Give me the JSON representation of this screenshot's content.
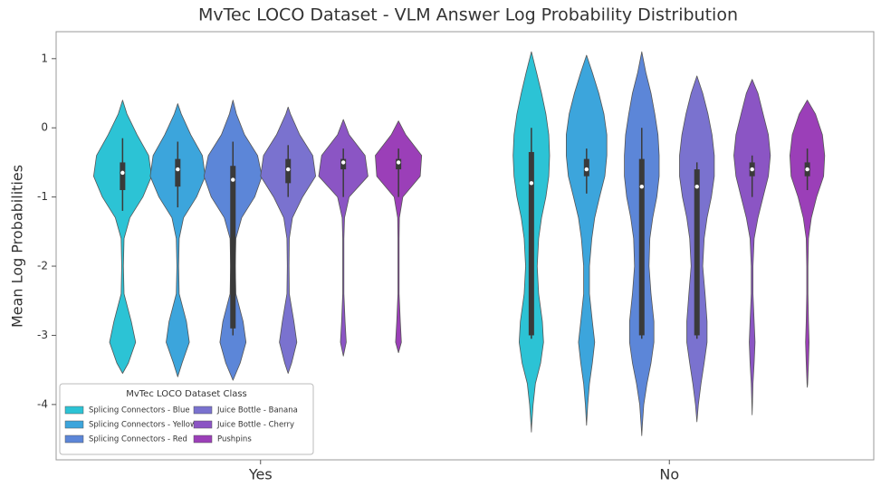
{
  "chart_data": {
    "type": "violin",
    "title": "MvTec LOCO Dataset - VLM Answer Log Probability Distribution",
    "ylabel": "Mean Log Probabilities",
    "categories": [
      "Yes",
      "No"
    ],
    "ylim": [
      -4.8,
      1.39
    ],
    "yticks": [
      1,
      0,
      -1,
      -2,
      -3,
      -4
    ],
    "grid": false,
    "legend": {
      "title": "MvTec LOCO Dataset Class",
      "position": "lower left"
    },
    "density_levels": [
      1.1,
      0.8,
      0.5,
      0.2,
      -0.1,
      -0.4,
      -0.7,
      -1.0,
      -1.3,
      -1.6,
      -2.0,
      -2.4,
      -2.8,
      -3.1,
      -3.4,
      -3.7,
      -4.0,
      -4.3,
      -4.6
    ],
    "series": [
      {
        "name": "Splicing Connectors - Blue",
        "color": "#2cc3d5",
        "values": [
          {
            "min": -3.55,
            "max": 0.4,
            "whislo": -1.2,
            "q1": -0.9,
            "median": -0.65,
            "q3": -0.5,
            "whishi": -0.15,
            "density": [
              0,
              0,
              0,
              0.15,
              0.5,
              0.9,
              1.0,
              0.7,
              0.25,
              0.05,
              0.03,
              0.05,
              0.3,
              0.45,
              0.2,
              0,
              0,
              0,
              0
            ]
          },
          {
            "min": -4.4,
            "max": 1.1,
            "whislo": -3.05,
            "q1": -3.0,
            "median": -0.8,
            "q3": -0.35,
            "whishi": 0.0,
            "density": [
              0.04,
              0.18,
              0.35,
              0.5,
              0.6,
              0.63,
              0.6,
              0.5,
              0.35,
              0.25,
              0.2,
              0.25,
              0.38,
              0.42,
              0.32,
              0.14,
              0.06,
              0.01,
              0
            ]
          }
        ]
      },
      {
        "name": "Splicing Connectors - Yellow",
        "color": "#3ca5dc",
        "values": [
          {
            "min": -3.6,
            "max": 0.35,
            "whislo": -1.15,
            "q1": -0.85,
            "median": -0.6,
            "q3": -0.45,
            "whishi": -0.2,
            "density": [
              0,
              0,
              0,
              0.12,
              0.45,
              0.85,
              0.95,
              0.65,
              0.2,
              0.05,
              0.03,
              0.05,
              0.3,
              0.4,
              0.15,
              0,
              0,
              0,
              0
            ]
          },
          {
            "min": -4.3,
            "max": 1.05,
            "whislo": -0.95,
            "q1": -0.7,
            "median": -0.6,
            "q3": -0.45,
            "whishi": -0.3,
            "density": [
              0.04,
              0.2,
              0.42,
              0.6,
              0.7,
              0.7,
              0.63,
              0.45,
              0.28,
              0.18,
              0.1,
              0.1,
              0.2,
              0.28,
              0.2,
              0.1,
              0.04,
              0.01,
              0
            ]
          }
        ]
      },
      {
        "name": "Splicing Connectors - Red",
        "color": "#5c86d8",
        "values": [
          {
            "min": -3.65,
            "max": 0.4,
            "whislo": -3.0,
            "q1": -2.9,
            "median": -0.75,
            "q3": -0.55,
            "whishi": -0.2,
            "density": [
              0,
              0,
              0,
              0.12,
              0.4,
              0.85,
              1.0,
              0.75,
              0.3,
              0.1,
              0.08,
              0.1,
              0.35,
              0.45,
              0.25,
              0,
              0,
              0,
              0
            ]
          },
          {
            "min": -4.45,
            "max": 1.1,
            "whislo": -3.05,
            "q1": -3.0,
            "median": -0.85,
            "q3": -0.45,
            "whishi": 0.0,
            "density": [
              0.03,
              0.14,
              0.32,
              0.45,
              0.56,
              0.6,
              0.6,
              0.52,
              0.38,
              0.28,
              0.25,
              0.32,
              0.42,
              0.42,
              0.32,
              0.18,
              0.07,
              0.02,
              0
            ]
          }
        ]
      },
      {
        "name": "Juice Bottle - Banana",
        "color": "#7a72cf",
        "values": [
          {
            "min": -3.55,
            "max": 0.3,
            "whislo": -1.0,
            "q1": -0.8,
            "median": -0.6,
            "q3": -0.45,
            "whishi": -0.25,
            "density": [
              0,
              0,
              0,
              0.08,
              0.4,
              0.85,
              0.95,
              0.5,
              0.15,
              0.04,
              0.03,
              0.04,
              0.2,
              0.3,
              0.12,
              0,
              0,
              0,
              0
            ]
          },
          {
            "min": -4.25,
            "max": 0.75,
            "whislo": -3.05,
            "q1": -3.0,
            "median": -0.85,
            "q3": -0.6,
            "whishi": -0.5,
            "density": [
              0,
              0.04,
              0.2,
              0.38,
              0.52,
              0.6,
              0.6,
              0.5,
              0.35,
              0.25,
              0.2,
              0.28,
              0.35,
              0.35,
              0.25,
              0.14,
              0.05,
              0.01,
              0
            ]
          }
        ]
      },
      {
        "name": "Juice Bottle - Cherry",
        "color": "#8b55c4",
        "values": [
          {
            "min": -3.3,
            "max": 0.12,
            "whislo": -1.0,
            "q1": -0.6,
            "median": -0.5,
            "q3": -0.45,
            "whishi": -0.3,
            "density": [
              0,
              0,
              0,
              0,
              0.2,
              0.75,
              0.85,
              0.2,
              0.04,
              0.02,
              0.02,
              0.02,
              0.06,
              0.1,
              0.03,
              0,
              0,
              0,
              0
            ]
          },
          {
            "min": -4.15,
            "max": 0.7,
            "whislo": -1.0,
            "q1": -0.7,
            "median": -0.6,
            "q3": -0.5,
            "whishi": -0.4,
            "density": [
              0,
              0.03,
              0.2,
              0.38,
              0.56,
              0.63,
              0.56,
              0.38,
              0.2,
              0.07,
              0.03,
              0.03,
              0.07,
              0.1,
              0.07,
              0.03,
              0.01,
              0,
              0
            ]
          }
        ]
      },
      {
        "name": "Pushpins",
        "color": "#9b3fb8",
        "values": [
          {
            "min": -3.25,
            "max": 0.1,
            "whislo": -1.0,
            "q1": -0.6,
            "median": -0.5,
            "q3": -0.45,
            "whishi": -0.3,
            "density": [
              0,
              0,
              0,
              0,
              0.25,
              0.8,
              0.75,
              0.15,
              0.03,
              0.02,
              0.02,
              0.02,
              0.06,
              0.1,
              0.02,
              0,
              0,
              0,
              0
            ]
          },
          {
            "min": -3.75,
            "max": 0.4,
            "whislo": -0.9,
            "q1": -0.7,
            "median": -0.6,
            "q3": -0.5,
            "whishi": -0.3,
            "density": [
              0,
              0,
              0.04,
              0.28,
              0.52,
              0.6,
              0.56,
              0.32,
              0.14,
              0.04,
              0.02,
              0.02,
              0.04,
              0.06,
              0.04,
              0.01,
              0,
              0,
              0
            ]
          }
        ]
      }
    ]
  }
}
